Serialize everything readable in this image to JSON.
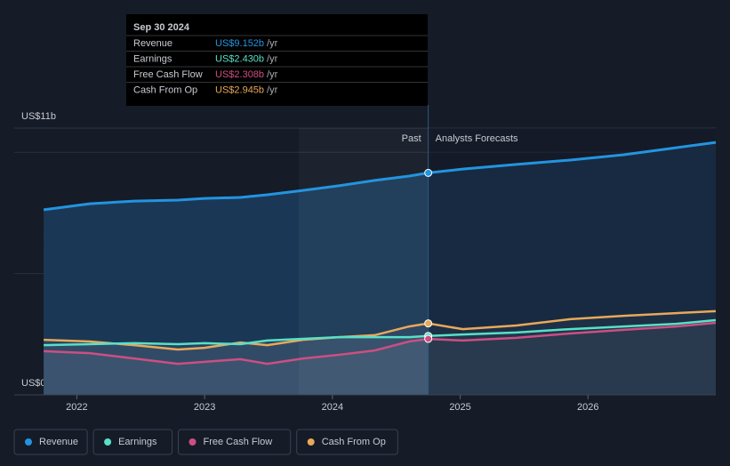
{
  "chart_data": {
    "type": "line",
    "x": [
      2021.74,
      2022.1,
      2022.45,
      2022.79,
      2023.0,
      2023.28,
      2023.49,
      2023.77,
      2024.05,
      2024.33,
      2024.6,
      2024.75,
      2025.02,
      2025.44,
      2025.86,
      2026.28,
      2026.69,
      2027.0
    ],
    "series": [
      {
        "name": "Revenue",
        "color": "#2394df",
        "values": [
          7.63,
          7.88,
          7.99,
          8.03,
          8.1,
          8.14,
          8.25,
          8.43,
          8.62,
          8.84,
          9.02,
          9.152,
          9.31,
          9.5,
          9.68,
          9.9,
          10.19,
          10.41
        ]
      },
      {
        "name": "Earnings",
        "color": "#58e0c8",
        "values": [
          2.05,
          2.09,
          2.13,
          2.09,
          2.13,
          2.09,
          2.24,
          2.31,
          2.38,
          2.38,
          2.38,
          2.43,
          2.49,
          2.57,
          2.71,
          2.82,
          2.93,
          3.08
        ]
      },
      {
        "name": "Free Cash Flow",
        "color": "#cc4f82",
        "values": [
          1.8,
          1.72,
          1.5,
          1.28,
          1.36,
          1.47,
          1.28,
          1.5,
          1.65,
          1.83,
          2.2,
          2.308,
          2.24,
          2.35,
          2.53,
          2.68,
          2.82,
          2.97
        ]
      },
      {
        "name": "Cash From Op",
        "color": "#e9a85a",
        "values": [
          2.27,
          2.2,
          2.05,
          1.87,
          1.94,
          2.16,
          2.05,
          2.27,
          2.38,
          2.46,
          2.82,
          2.945,
          2.71,
          2.86,
          3.12,
          3.26,
          3.37,
          3.45
        ]
      }
    ],
    "xlim": [
      2021.51,
      2027.0
    ],
    "xticks": [
      2022,
      2023,
      2024,
      2025,
      2026
    ],
    "ylim": [
      0,
      11
    ],
    "yticks": [
      {
        "value": 0,
        "label": "US$0"
      },
      {
        "value": 11,
        "label": "US$11b"
      }
    ],
    "grid_lines": [
      5,
      10
    ],
    "past_end": 2024.75,
    "past_label": "Past",
    "forecast_label": "Analysts Forecasts",
    "tooltip": {
      "date": "Sep 30 2024",
      "unit_label": "/yr",
      "rows": [
        {
          "label": "Revenue",
          "value": 9.152,
          "value_label": "US$9.152b"
        },
        {
          "label": "Earnings",
          "value": 2.43,
          "value_label": "US$2.430b"
        },
        {
          "label": "Free Cash Flow",
          "value": 2.308,
          "value_label": "US$2.308b"
        },
        {
          "label": "Cash From Op",
          "value": 2.945,
          "value_label": "US$2.945b"
        }
      ]
    }
  }
}
